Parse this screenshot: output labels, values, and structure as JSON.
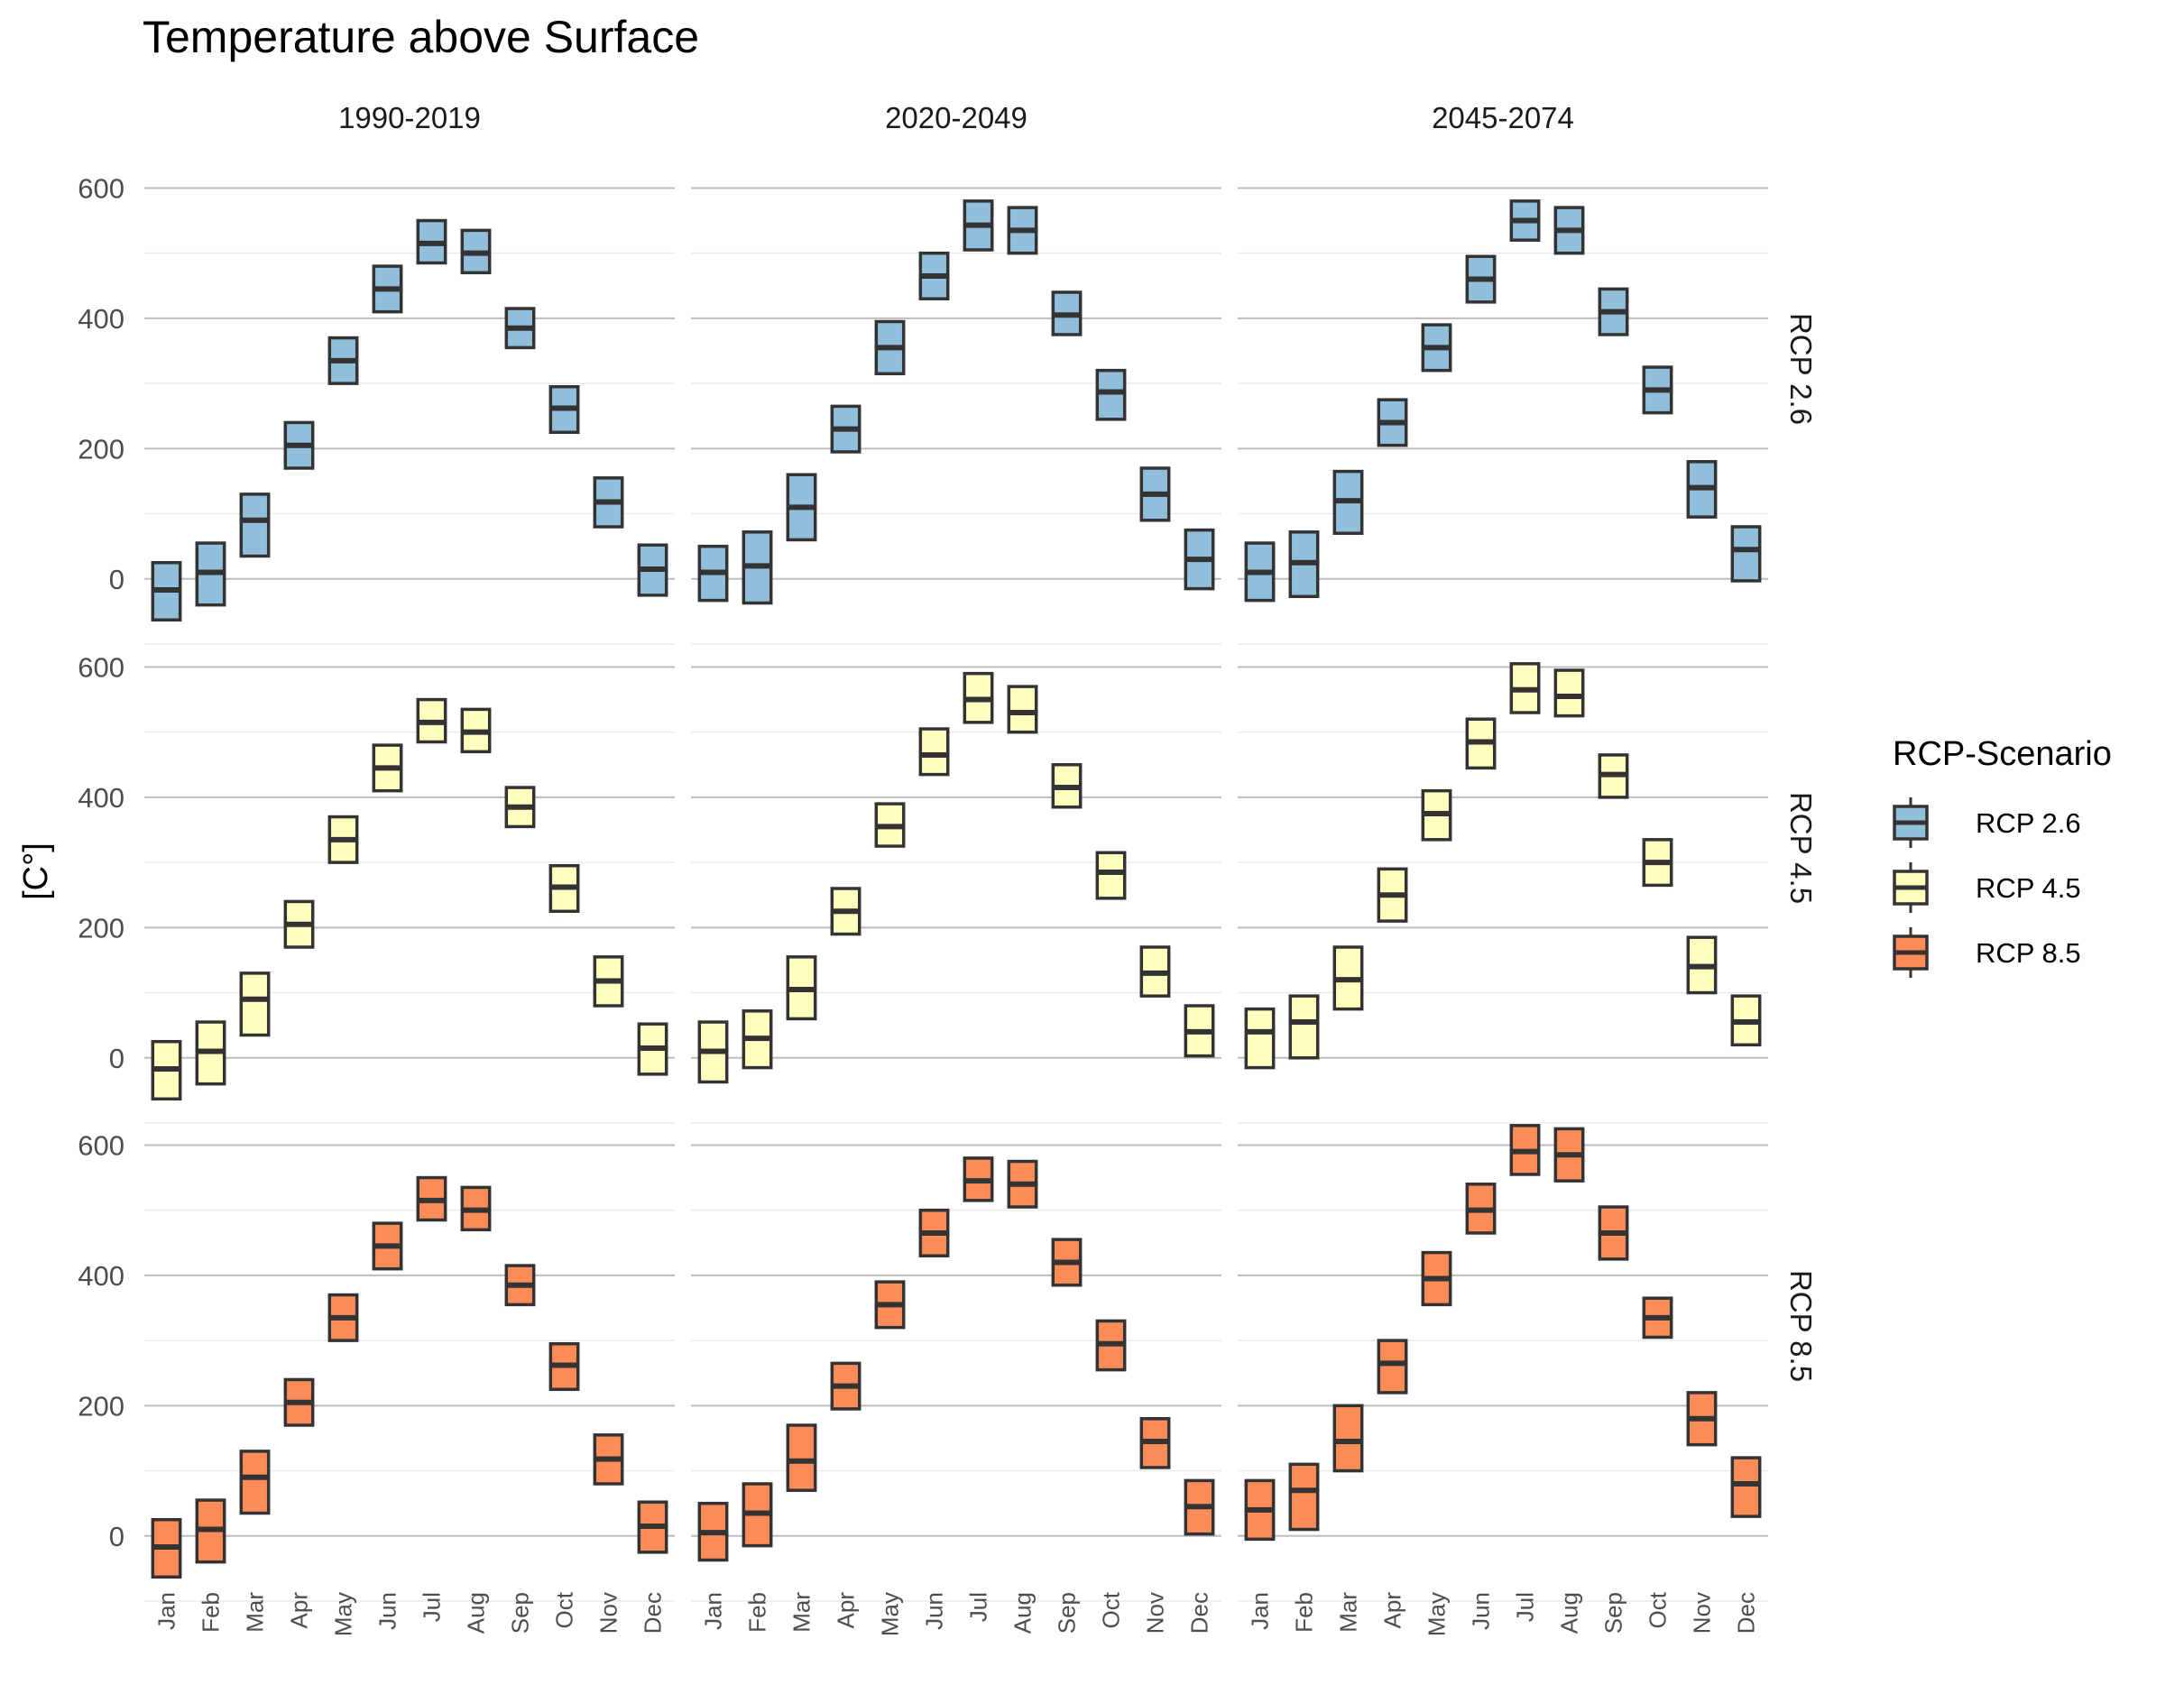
{
  "chart_data": {
    "type": "boxplot",
    "title": "Temperature above Surface",
    "ylabel": "[C°]",
    "xlabel": "",
    "ylim": [
      -100,
      620
    ],
    "yticks": [
      0,
      200,
      400,
      600
    ],
    "grid": true,
    "categories": [
      "Jan",
      "Feb",
      "Mar",
      "Apr",
      "May",
      "Jun",
      "Jul",
      "Aug",
      "Sep",
      "Oct",
      "Nov",
      "Dec"
    ],
    "periods": [
      "1990-2019",
      "2020-2049",
      "2045-2074"
    ],
    "legend": {
      "title": "RCP-Scenario",
      "placement": "right",
      "entries": [
        {
          "name": "RCP 2.6",
          "color": "#91BFDB"
        },
        {
          "name": "RCP 4.5",
          "color": "#FFFFBF"
        },
        {
          "name": "RCP 8.5",
          "color": "#FC8D59"
        }
      ]
    },
    "panels": [
      {
        "scenario": "RCP 2.6",
        "period": "1990-2019",
        "boxes": [
          [
            -63,
            -17,
            25
          ],
          [
            -40,
            10,
            55
          ],
          [
            35,
            90,
            130
          ],
          [
            170,
            205,
            240
          ],
          [
            300,
            335,
            370
          ],
          [
            410,
            445,
            480
          ],
          [
            485,
            515,
            550
          ],
          [
            470,
            500,
            535
          ],
          [
            355,
            385,
            415
          ],
          [
            225,
            262,
            295
          ],
          [
            80,
            118,
            155
          ],
          [
            -25,
            15,
            52
          ]
        ]
      },
      {
        "scenario": "RCP 2.6",
        "period": "2020-2049",
        "boxes": [
          [
            -33,
            10,
            50
          ],
          [
            -37,
            20,
            72
          ],
          [
            60,
            110,
            160
          ],
          [
            195,
            230,
            265
          ],
          [
            315,
            355,
            395
          ],
          [
            430,
            465,
            500
          ],
          [
            505,
            543,
            580
          ],
          [
            500,
            535,
            570
          ],
          [
            375,
            405,
            440
          ],
          [
            245,
            287,
            320
          ],
          [
            90,
            130,
            170
          ],
          [
            -15,
            30,
            75
          ]
        ]
      },
      {
        "scenario": "RCP 2.6",
        "period": "2045-2074",
        "boxes": [
          [
            -33,
            10,
            55
          ],
          [
            -27,
            25,
            72
          ],
          [
            70,
            120,
            165
          ],
          [
            205,
            240,
            275
          ],
          [
            320,
            355,
            390
          ],
          [
            425,
            460,
            495
          ],
          [
            520,
            550,
            580
          ],
          [
            500,
            535,
            570
          ],
          [
            375,
            410,
            445
          ],
          [
            255,
            290,
            325
          ],
          [
            95,
            140,
            180
          ],
          [
            -3,
            45,
            80
          ]
        ]
      },
      {
        "scenario": "RCP 4.5",
        "period": "1990-2019",
        "boxes": [
          [
            -63,
            -17,
            25
          ],
          [
            -40,
            10,
            55
          ],
          [
            35,
            90,
            130
          ],
          [
            170,
            205,
            240
          ],
          [
            300,
            335,
            370
          ],
          [
            410,
            445,
            480
          ],
          [
            485,
            515,
            550
          ],
          [
            470,
            500,
            535
          ],
          [
            355,
            385,
            415
          ],
          [
            225,
            262,
            295
          ],
          [
            80,
            118,
            155
          ],
          [
            -25,
            15,
            52
          ]
        ]
      },
      {
        "scenario": "RCP 4.5",
        "period": "2020-2049",
        "boxes": [
          [
            -37,
            10,
            55
          ],
          [
            -15,
            30,
            72
          ],
          [
            60,
            105,
            155
          ],
          [
            190,
            225,
            260
          ],
          [
            325,
            355,
            390
          ],
          [
            435,
            465,
            505
          ],
          [
            515,
            550,
            590
          ],
          [
            500,
            530,
            570
          ],
          [
            385,
            415,
            450
          ],
          [
            245,
            285,
            315
          ],
          [
            95,
            130,
            170
          ],
          [
            3,
            40,
            80
          ]
        ]
      },
      {
        "scenario": "RCP 4.5",
        "period": "2045-2074",
        "boxes": [
          [
            -15,
            40,
            75
          ],
          [
            0,
            55,
            95
          ],
          [
            75,
            120,
            170
          ],
          [
            210,
            250,
            290
          ],
          [
            335,
            375,
            410
          ],
          [
            445,
            485,
            520
          ],
          [
            530,
            565,
            605
          ],
          [
            525,
            555,
            595
          ],
          [
            400,
            435,
            465
          ],
          [
            265,
            300,
            335
          ],
          [
            100,
            140,
            185
          ],
          [
            20,
            55,
            95
          ]
        ]
      },
      {
        "scenario": "RCP 8.5",
        "period": "1990-2019",
        "boxes": [
          [
            -63,
            -17,
            25
          ],
          [
            -40,
            10,
            55
          ],
          [
            35,
            90,
            130
          ],
          [
            170,
            205,
            240
          ],
          [
            300,
            335,
            370
          ],
          [
            410,
            445,
            480
          ],
          [
            485,
            515,
            550
          ],
          [
            470,
            500,
            535
          ],
          [
            355,
            385,
            415
          ],
          [
            225,
            262,
            295
          ],
          [
            80,
            118,
            155
          ],
          [
            -25,
            15,
            52
          ]
        ]
      },
      {
        "scenario": "RCP 8.5",
        "period": "2020-2049",
        "boxes": [
          [
            -37,
            5,
            50
          ],
          [
            -15,
            35,
            80
          ],
          [
            70,
            115,
            170
          ],
          [
            195,
            230,
            265
          ],
          [
            320,
            355,
            390
          ],
          [
            430,
            465,
            500
          ],
          [
            515,
            545,
            580
          ],
          [
            505,
            540,
            575
          ],
          [
            385,
            420,
            455
          ],
          [
            255,
            295,
            330
          ],
          [
            105,
            145,
            180
          ],
          [
            3,
            45,
            85
          ]
        ]
      },
      {
        "scenario": "RCP 8.5",
        "period": "2045-2074",
        "boxes": [
          [
            -5,
            40,
            85
          ],
          [
            10,
            70,
            110
          ],
          [
            100,
            145,
            200
          ],
          [
            220,
            265,
            300
          ],
          [
            355,
            395,
            435
          ],
          [
            465,
            500,
            540
          ],
          [
            555,
            590,
            630
          ],
          [
            545,
            585,
            625
          ],
          [
            425,
            465,
            505
          ],
          [
            305,
            335,
            365
          ],
          [
            140,
            180,
            220
          ],
          [
            30,
            80,
            120
          ]
        ]
      }
    ]
  }
}
